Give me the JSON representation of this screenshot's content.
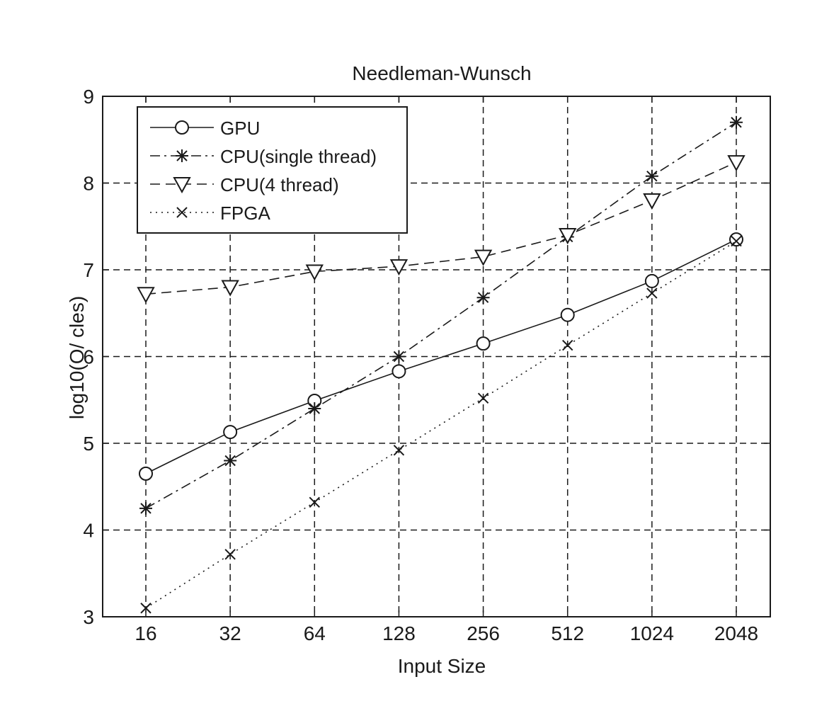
{
  "chart_data": {
    "type": "line",
    "title": "Needleman-Wunsch",
    "xlabel": "Input Size",
    "ylabel": "log10(O/ cles)",
    "categories": [
      "16",
      "32",
      "64",
      "128",
      "256",
      "512",
      "1024",
      "2048"
    ],
    "ylim": [
      3,
      9
    ],
    "yticks": [
      "3",
      "4",
      "5",
      "6",
      "7",
      "8",
      "9"
    ],
    "grid": true,
    "legend_position": "top-left",
    "series": [
      {
        "name": "GPU",
        "values": [
          4.65,
          5.13,
          5.49,
          5.83,
          6.15,
          6.48,
          6.87,
          7.35
        ],
        "line_style": "solid",
        "marker": "circle"
      },
      {
        "name": "CPU(single thread)",
        "values": [
          4.25,
          4.8,
          5.4,
          6.0,
          6.68,
          7.38,
          8.08,
          8.7
        ],
        "line_style": "dash-dot",
        "marker": "star"
      },
      {
        "name": "CPU(4 thread)",
        "values": [
          6.72,
          6.8,
          6.98,
          7.04,
          7.15,
          7.4,
          7.8,
          8.24
        ],
        "line_style": "dashed",
        "marker": "triangle-down"
      },
      {
        "name": "FPGA",
        "values": [
          3.1,
          3.72,
          4.32,
          4.92,
          5.52,
          6.13,
          6.73,
          7.33
        ],
        "line_style": "dotted",
        "marker": "x"
      }
    ],
    "colors": {
      "line": "#1a1a1a",
      "grid": "#1a1a1a",
      "background": "#ffffff"
    }
  }
}
